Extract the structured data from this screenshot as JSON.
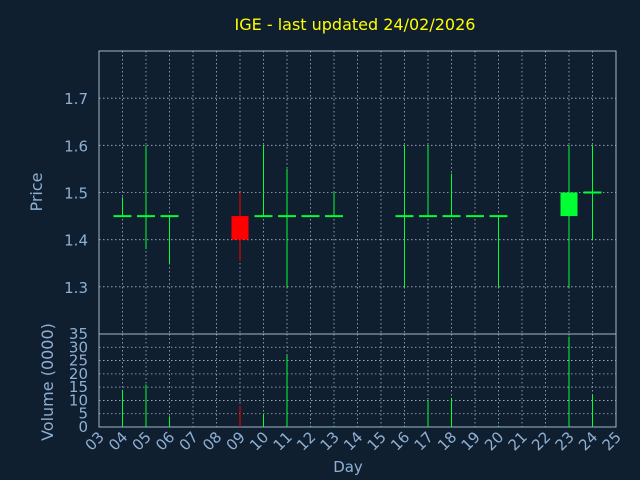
{
  "colors": {
    "background": "#0f1f30",
    "plot_border": "#9fb4cc",
    "grid": "#c9d3de",
    "axis_text": "#8fb0d2",
    "title": "#ffff00",
    "up": "#00ff33",
    "down": "#ff0000"
  },
  "chart_data": [
    {
      "type": "candlestick",
      "title": "IGE - last updated 24/02/2026",
      "ylabel": "Price",
      "xlim": [
        "03",
        "25"
      ],
      "ylim": [
        1.2,
        1.8
      ],
      "yticks": [
        1.3,
        1.4,
        1.5,
        1.6,
        1.7
      ],
      "grid": true,
      "candles": [
        {
          "day": "04",
          "open": 1.45,
          "high": 1.49,
          "low": 1.45,
          "close": 1.45
        },
        {
          "day": "05",
          "open": 1.45,
          "high": 1.6,
          "low": 1.38,
          "close": 1.45
        },
        {
          "day": "06",
          "open": 1.45,
          "high": 1.45,
          "low": 1.35,
          "close": 1.45
        },
        {
          "day": "09",
          "open": 1.45,
          "high": 1.5,
          "low": 1.355,
          "close": 1.4
        },
        {
          "day": "10",
          "open": 1.45,
          "high": 1.6,
          "low": 1.45,
          "close": 1.45
        },
        {
          "day": "11",
          "open": 1.45,
          "high": 1.55,
          "low": 1.3,
          "close": 1.45
        },
        {
          "day": "12",
          "open": 1.45,
          "high": 1.45,
          "low": 1.45,
          "close": 1.45
        },
        {
          "day": "13",
          "open": 1.45,
          "high": 1.5,
          "low": 1.45,
          "close": 1.45
        },
        {
          "day": "16",
          "open": 1.45,
          "high": 1.6,
          "low": 1.3,
          "close": 1.45
        },
        {
          "day": "17",
          "open": 1.45,
          "high": 1.6,
          "low": 1.45,
          "close": 1.45
        },
        {
          "day": "18",
          "open": 1.45,
          "high": 1.54,
          "low": 1.45,
          "close": 1.45
        },
        {
          "day": "19",
          "open": 1.45,
          "high": 1.45,
          "low": 1.45,
          "close": 1.45
        },
        {
          "day": "20",
          "open": 1.45,
          "high": 1.45,
          "low": 1.3,
          "close": 1.45
        },
        {
          "day": "23",
          "open": 1.45,
          "high": 1.6,
          "low": 1.3,
          "close": 1.5
        },
        {
          "day": "24",
          "open": 1.5,
          "high": 1.6,
          "low": 1.4,
          "close": 1.5
        }
      ]
    },
    {
      "type": "bar",
      "ylabel": "Volume (0000)",
      "xlabel": "Day",
      "categories": [
        "03",
        "04",
        "05",
        "06",
        "07",
        "08",
        "09",
        "10",
        "11",
        "12",
        "13",
        "14",
        "15",
        "16",
        "17",
        "18",
        "19",
        "20",
        "21",
        "22",
        "23",
        "24",
        "25"
      ],
      "ylim": [
        0,
        35
      ],
      "yticks": [
        0,
        5,
        10,
        15,
        20,
        25,
        30,
        35
      ],
      "grid": true,
      "bars": [
        {
          "day": "04",
          "value": 14,
          "direction": "flat"
        },
        {
          "day": "05",
          "value": 16,
          "direction": "flat"
        },
        {
          "day": "06",
          "value": 4,
          "direction": "flat"
        },
        {
          "day": "09",
          "value": 8,
          "direction": "down"
        },
        {
          "day": "10",
          "value": 5,
          "direction": "flat"
        },
        {
          "day": "11",
          "value": 27,
          "direction": "flat"
        },
        {
          "day": "12",
          "value": 0.5,
          "direction": "flat"
        },
        {
          "day": "13",
          "value": 0.5,
          "direction": "flat"
        },
        {
          "day": "16",
          "value": 0.5,
          "direction": "flat"
        },
        {
          "day": "17",
          "value": 10,
          "direction": "flat"
        },
        {
          "day": "18",
          "value": 11,
          "direction": "flat"
        },
        {
          "day": "20",
          "value": 0.5,
          "direction": "flat"
        },
        {
          "day": "23",
          "value": 34,
          "direction": "up"
        },
        {
          "day": "24",
          "value": 12,
          "direction": "flat"
        }
      ]
    }
  ]
}
